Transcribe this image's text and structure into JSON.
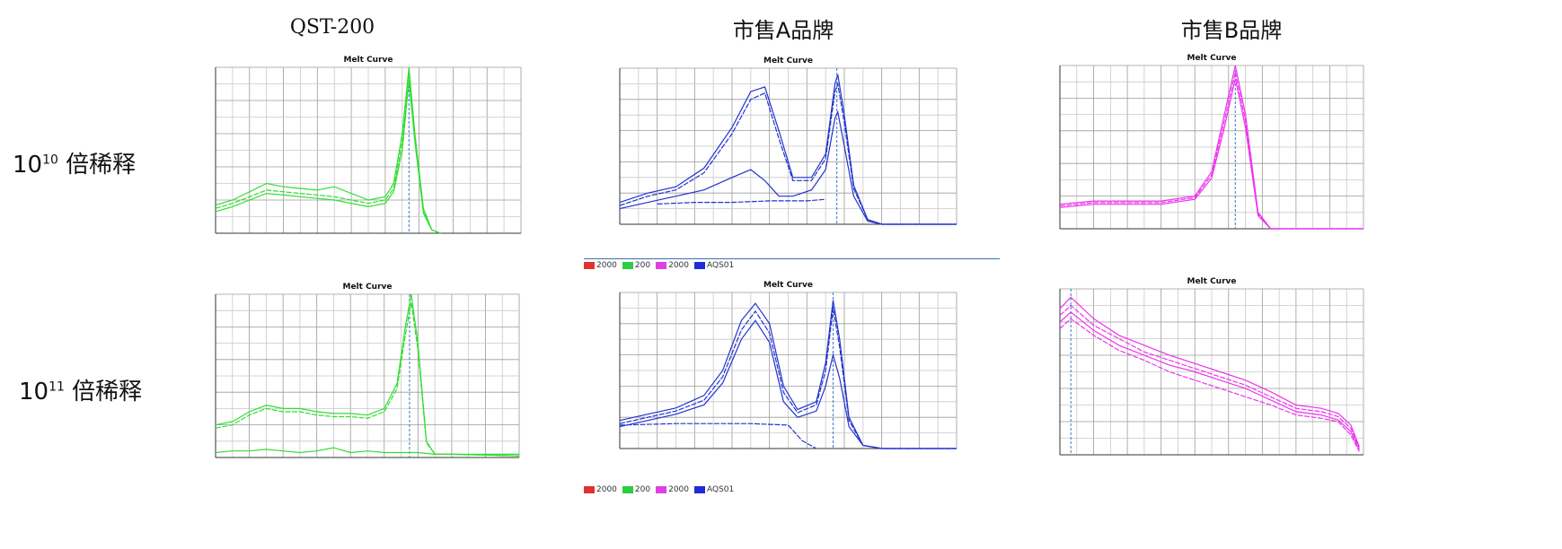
{
  "columns": [
    "QST-200",
    "市售A品牌",
    "市售B品牌"
  ],
  "rows": [
    {
      "base": "10",
      "exp": "10",
      "suffix": " 倍稀释"
    },
    {
      "base": "10",
      "exp": "11",
      "suffix": " 倍稀释"
    }
  ],
  "legend_a": [
    {
      "label": "2000",
      "color": "#e53030"
    },
    {
      "label": "200",
      "color": "#2ecc40"
    },
    {
      "label": "2000",
      "color": "#e040e0"
    },
    {
      "label": "AQS01",
      "color": "#1e2bd6"
    }
  ],
  "chart_data": [
    {
      "type": "line",
      "title": "Melt Curve",
      "panel": "QST-200 / 10^10",
      "color": "#33dd33",
      "xlim": [
        60,
        96
      ],
      "ylim": [
        0,
        1
      ],
      "vline_x": 82.8,
      "series": [
        {
          "x": [
            60,
            62,
            64,
            66,
            68,
            70,
            72,
            74,
            76,
            78,
            80,
            81,
            82,
            82.8,
            83.5,
            84.5,
            85.5,
            86.5
          ],
          "y": [
            0.17,
            0.2,
            0.25,
            0.3,
            0.28,
            0.27,
            0.26,
            0.28,
            0.24,
            0.2,
            0.22,
            0.3,
            0.6,
            1.0,
            0.6,
            0.15,
            0.02,
            0.0
          ]
        },
        {
          "x": [
            60,
            62,
            64,
            66,
            68,
            70,
            72,
            74,
            76,
            78,
            80,
            81,
            82,
            82.8,
            83.5,
            84.5,
            85.5,
            86.5
          ],
          "y": [
            0.15,
            0.18,
            0.22,
            0.26,
            0.25,
            0.24,
            0.23,
            0.22,
            0.2,
            0.18,
            0.2,
            0.27,
            0.55,
            0.96,
            0.58,
            0.13,
            0.02,
            0.0
          ]
        },
        {
          "x": [
            60,
            62,
            64,
            66,
            68,
            70,
            72,
            74,
            76,
            78,
            80,
            81,
            82,
            82.8,
            83.5,
            84.5,
            85.5,
            86.5
          ],
          "y": [
            0.13,
            0.16,
            0.2,
            0.24,
            0.23,
            0.22,
            0.21,
            0.2,
            0.18,
            0.16,
            0.18,
            0.25,
            0.5,
            0.92,
            0.55,
            0.12,
            0.02,
            0.0
          ]
        }
      ]
    },
    {
      "type": "line",
      "title": "Melt Curve",
      "panel": "市售A品牌 / 10^10",
      "color": "#2233cc",
      "xlim": [
        60,
        96
      ],
      "ylim": [
        0,
        1
      ],
      "vline_x": 83.2,
      "series": [
        {
          "x": [
            60,
            63,
            66,
            69,
            72,
            74,
            75.5,
            77,
            78.5,
            80.5,
            82,
            83,
            83.3,
            84,
            85,
            86.5,
            88,
            96
          ],
          "y": [
            0.14,
            0.2,
            0.24,
            0.36,
            0.62,
            0.85,
            0.88,
            0.6,
            0.3,
            0.3,
            0.45,
            0.9,
            0.96,
            0.7,
            0.25,
            0.03,
            0.0,
            0.0
          ]
        },
        {
          "x": [
            60,
            63,
            66,
            69,
            72,
            74,
            75.5,
            77,
            78.5,
            80.5,
            82,
            83,
            83.3,
            84,
            85,
            86.5,
            88,
            96
          ],
          "y": [
            0.12,
            0.18,
            0.22,
            0.33,
            0.58,
            0.8,
            0.84,
            0.55,
            0.28,
            0.28,
            0.42,
            0.85,
            0.9,
            0.65,
            0.23,
            0.03,
            0.0,
            0.0
          ]
        },
        {
          "x": [
            60,
            63,
            66,
            69,
            72,
            74,
            75.5,
            77,
            78.5,
            80.5,
            82,
            83,
            83.3,
            84,
            85,
            86.5,
            88,
            96
          ],
          "y": [
            0.1,
            0.14,
            0.18,
            0.22,
            0.3,
            0.35,
            0.28,
            0.18,
            0.18,
            0.22,
            0.35,
            0.68,
            0.72,
            0.5,
            0.18,
            0.02,
            0.0,
            0.0
          ]
        },
        {
          "x": [
            64,
            68,
            72,
            76,
            80,
            82
          ],
          "y": [
            0.13,
            0.14,
            0.14,
            0.15,
            0.15,
            0.16
          ]
        }
      ]
    },
    {
      "type": "line",
      "title": "Melt Curve",
      "panel": "市售B品牌 / 10^10",
      "color": "#ee33ee",
      "xlim": [
        60,
        96
      ],
      "ylim": [
        0,
        1
      ],
      "vline_x": 80.8,
      "series": [
        {
          "x": [
            60,
            64,
            68,
            72,
            76,
            78,
            79.5,
            80.8,
            82,
            83.5,
            85,
            96
          ],
          "y": [
            0.15,
            0.17,
            0.17,
            0.17,
            0.2,
            0.35,
            0.7,
            1.0,
            0.7,
            0.1,
            0.0,
            0.0
          ]
        },
        {
          "x": [
            60,
            64,
            68,
            72,
            76,
            78,
            79.5,
            80.8,
            82,
            83.5,
            85,
            96
          ],
          "y": [
            0.14,
            0.16,
            0.16,
            0.16,
            0.19,
            0.33,
            0.66,
            0.96,
            0.66,
            0.09,
            0.0,
            0.0
          ]
        },
        {
          "x": [
            60,
            64,
            68,
            72,
            76,
            78,
            79.5,
            80.8,
            82,
            83.5,
            85,
            96
          ],
          "y": [
            0.13,
            0.15,
            0.15,
            0.15,
            0.18,
            0.31,
            0.62,
            0.92,
            0.62,
            0.08,
            0.0,
            0.0
          ]
        }
      ]
    },
    {
      "type": "line",
      "title": "Melt Curve",
      "panel": "QST-200 / 10^11",
      "color": "#33dd33",
      "xlim": [
        60,
        96
      ],
      "ylim": [
        0,
        1
      ],
      "vline_x": 83.0,
      "series": [
        {
          "x": [
            60,
            62,
            64,
            66,
            68,
            70,
            72,
            74,
            76,
            78,
            80,
            81.5,
            82.5,
            83.2,
            84,
            85,
            86,
            88,
            96
          ],
          "y": [
            0.2,
            0.22,
            0.28,
            0.32,
            0.3,
            0.3,
            0.28,
            0.27,
            0.27,
            0.26,
            0.3,
            0.45,
            0.8,
            1.0,
            0.7,
            0.1,
            0.02,
            0.02,
            0.01
          ]
        },
        {
          "x": [
            60,
            62,
            64,
            66,
            68,
            70,
            72,
            74,
            76,
            78,
            80,
            81.5,
            82.5,
            83.2,
            84,
            85,
            86,
            88,
            96
          ],
          "y": [
            0.18,
            0.2,
            0.26,
            0.3,
            0.28,
            0.28,
            0.26,
            0.25,
            0.25,
            0.24,
            0.28,
            0.42,
            0.75,
            0.95,
            0.66,
            0.09,
            0.02,
            0.02,
            0.01
          ]
        },
        {
          "x": [
            60,
            62,
            64,
            66,
            68,
            70,
            72,
            74,
            76,
            78,
            80,
            82,
            84,
            86,
            88,
            96
          ],
          "y": [
            0.03,
            0.04,
            0.04,
            0.05,
            0.04,
            0.03,
            0.04,
            0.06,
            0.03,
            0.04,
            0.03,
            0.03,
            0.03,
            0.02,
            0.02,
            0.02
          ]
        }
      ]
    },
    {
      "type": "line",
      "title": "Melt Curve",
      "panel": "市售A品牌 / 10^11",
      "color": "#2233cc",
      "xlim": [
        60,
        96
      ],
      "ylim": [
        0,
        1
      ],
      "vline_x": 82.8,
      "series": [
        {
          "x": [
            60,
            63,
            66,
            69,
            71,
            73,
            74.5,
            76,
            77.5,
            79,
            81,
            82,
            82.8,
            83.5,
            84.5,
            86,
            88,
            96
          ],
          "y": [
            0.18,
            0.22,
            0.26,
            0.34,
            0.5,
            0.82,
            0.93,
            0.8,
            0.4,
            0.25,
            0.3,
            0.55,
            0.95,
            0.7,
            0.2,
            0.02,
            0.0,
            0.0
          ]
        },
        {
          "x": [
            60,
            63,
            66,
            69,
            71,
            73,
            74.5,
            76,
            77.5,
            79,
            81,
            82,
            82.8,
            83.5,
            84.5,
            86,
            88,
            96
          ],
          "y": [
            0.16,
            0.2,
            0.24,
            0.31,
            0.46,
            0.76,
            0.88,
            0.74,
            0.36,
            0.23,
            0.28,
            0.5,
            0.9,
            0.65,
            0.18,
            0.02,
            0.0,
            0.0
          ]
        },
        {
          "x": [
            60,
            63,
            66,
            69,
            71,
            73,
            74.5,
            76,
            77.5,
            79,
            81,
            82,
            82.8,
            83.5,
            84.5,
            86,
            88,
            96
          ],
          "y": [
            0.14,
            0.18,
            0.22,
            0.28,
            0.42,
            0.7,
            0.82,
            0.68,
            0.3,
            0.2,
            0.24,
            0.4,
            0.6,
            0.45,
            0.14,
            0.02,
            0.0,
            0.0
          ]
        },
        {
          "x": [
            60,
            66,
            70,
            74,
            78,
            79.5,
            81
          ],
          "y": [
            0.15,
            0.16,
            0.16,
            0.16,
            0.15,
            0.05,
            0.0
          ]
        }
      ]
    },
    {
      "type": "line",
      "title": "Melt Curve",
      "panel": "市售B品牌 / 10^11",
      "color": "#ee33ee",
      "xlim": [
        60,
        96
      ],
      "ylim": [
        0,
        1
      ],
      "vline_x": 61.3,
      "series": [
        {
          "x": [
            60,
            61.3,
            64,
            67,
            70,
            73,
            76,
            79,
            82,
            85,
            88,
            91,
            93,
            94.5,
            95.5
          ],
          "y": [
            0.88,
            0.95,
            0.82,
            0.72,
            0.66,
            0.6,
            0.55,
            0.5,
            0.45,
            0.38,
            0.3,
            0.28,
            0.25,
            0.18,
            0.05
          ]
        },
        {
          "x": [
            60,
            61.3,
            64,
            67,
            70,
            73,
            76,
            79,
            82,
            85,
            88,
            91,
            93,
            94.5,
            95.5
          ],
          "y": [
            0.84,
            0.9,
            0.78,
            0.7,
            0.62,
            0.57,
            0.52,
            0.47,
            0.42,
            0.35,
            0.28,
            0.26,
            0.23,
            0.16,
            0.04
          ]
        },
        {
          "x": [
            60,
            61.3,
            64,
            67,
            70,
            73,
            76,
            79,
            82,
            85,
            88,
            91,
            93,
            94.5,
            95.5
          ],
          "y": [
            0.8,
            0.86,
            0.75,
            0.66,
            0.6,
            0.54,
            0.5,
            0.45,
            0.4,
            0.33,
            0.26,
            0.24,
            0.21,
            0.14,
            0.03
          ]
        },
        {
          "x": [
            60,
            61.3,
            64,
            67,
            70,
            73,
            76,
            79,
            82,
            85,
            88,
            91,
            93,
            94.5,
            95.5
          ],
          "y": [
            0.76,
            0.82,
            0.72,
            0.63,
            0.57,
            0.5,
            0.45,
            0.4,
            0.35,
            0.3,
            0.24,
            0.22,
            0.2,
            0.12,
            0.02
          ]
        }
      ]
    }
  ]
}
